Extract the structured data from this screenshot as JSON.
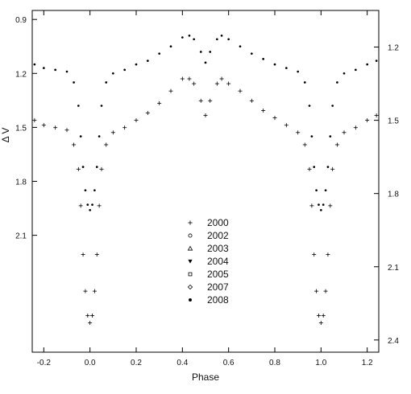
{
  "chart_data": {
    "type": "scatter",
    "xlabel": "Phase",
    "ylabel_left": "Δ V",
    "ylabel_right": "",
    "xlim": [
      -0.25,
      1.25
    ],
    "ylim_left": [
      2.75,
      0.85
    ],
    "ylim_right": [
      2.45,
      1.05
    ],
    "y_inverted": true,
    "grid": false,
    "legend_position": "center",
    "x_ticks": [
      -0.2,
      0.0,
      0.2,
      0.4,
      0.6,
      0.8,
      1.0,
      1.2
    ],
    "x_tick_labels": [
      "-0.2",
      "0.0",
      "0.2",
      "0.4",
      "0.6",
      "0.8",
      "1.0",
      "1.2"
    ],
    "y_ticks_left": [
      0.9,
      1.2,
      1.5,
      1.8,
      2.1
    ],
    "y_tick_labels_left": [
      "0.9",
      "1.2",
      "1.5",
      "1.8",
      "2.1"
    ],
    "y_ticks_right": [
      1.2,
      1.5,
      1.8,
      2.1,
      2.4
    ],
    "y_tick_labels_right": [
      "1.2",
      "1.5",
      "1.8",
      "2.1",
      "2.4"
    ],
    "legend": [
      {
        "label": "2000",
        "marker": "plus"
      },
      {
        "label": "2002",
        "marker": "circle"
      },
      {
        "label": "2003",
        "marker": "triangle-up"
      },
      {
        "label": "2004",
        "marker": "triangle-down"
      },
      {
        "label": "2005",
        "marker": "square"
      },
      {
        "label": "2007",
        "marker": "diamond"
      },
      {
        "label": "2008",
        "marker": "dot"
      }
    ],
    "series": [
      {
        "name": "2000",
        "axis": "right",
        "marker": "plus",
        "x": [
          -0.24,
          -0.2,
          -0.15,
          -0.1,
          -0.07,
          -0.05,
          -0.04,
          -0.03,
          -0.02,
          -0.01,
          0.0,
          0.01,
          0.02,
          0.03,
          0.04,
          0.05,
          0.07,
          0.1,
          0.15,
          0.2,
          0.25,
          0.3,
          0.35,
          0.4,
          0.43,
          0.45,
          0.48,
          0.5,
          0.52,
          0.55,
          0.57,
          0.6,
          0.65,
          0.7,
          0.75,
          0.8,
          0.85,
          0.9,
          0.93,
          0.95,
          0.96,
          0.97,
          0.98,
          0.99,
          1.0,
          1.01,
          1.02,
          1.03,
          1.04,
          1.05,
          1.07,
          1.1,
          1.15,
          1.2,
          1.24
        ],
        "y": [
          1.5,
          1.52,
          1.53,
          1.54,
          1.6,
          1.7,
          1.85,
          2.05,
          2.2,
          2.3,
          2.33,
          2.3,
          2.2,
          2.05,
          1.85,
          1.7,
          1.6,
          1.55,
          1.53,
          1.5,
          1.47,
          1.43,
          1.38,
          1.33,
          1.33,
          1.35,
          1.42,
          1.48,
          1.42,
          1.35,
          1.33,
          1.35,
          1.38,
          1.42,
          1.46,
          1.49,
          1.52,
          1.55,
          1.6,
          1.7,
          1.85,
          2.05,
          2.2,
          2.3,
          2.33,
          2.3,
          2.2,
          2.05,
          1.85,
          1.7,
          1.6,
          1.55,
          1.53,
          1.5,
          1.48
        ]
      },
      {
        "name": "2008",
        "axis": "left",
        "marker": "dot",
        "x": [
          -0.24,
          -0.2,
          -0.15,
          -0.1,
          -0.07,
          -0.05,
          -0.04,
          -0.03,
          -0.02,
          -0.01,
          0.0,
          0.01,
          0.02,
          0.03,
          0.04,
          0.05,
          0.07,
          0.1,
          0.15,
          0.2,
          0.25,
          0.3,
          0.35,
          0.4,
          0.43,
          0.45,
          0.48,
          0.5,
          0.52,
          0.55,
          0.57,
          0.6,
          0.65,
          0.7,
          0.75,
          0.8,
          0.85,
          0.9,
          0.93,
          0.95,
          0.96,
          0.97,
          0.98,
          0.99,
          1.0,
          1.01,
          1.02,
          1.03,
          1.04,
          1.05,
          1.07,
          1.1,
          1.15,
          1.2,
          1.24
        ],
        "y": [
          1.15,
          1.17,
          1.18,
          1.19,
          1.25,
          1.38,
          1.55,
          1.72,
          1.85,
          1.93,
          1.96,
          1.93,
          1.85,
          1.72,
          1.55,
          1.38,
          1.25,
          1.2,
          1.18,
          1.15,
          1.13,
          1.09,
          1.05,
          1.0,
          0.99,
          1.01,
          1.08,
          1.14,
          1.08,
          1.01,
          0.99,
          1.01,
          1.05,
          1.09,
          1.12,
          1.15,
          1.17,
          1.19,
          1.25,
          1.38,
          1.55,
          1.72,
          1.85,
          1.93,
          1.96,
          1.93,
          1.85,
          1.72,
          1.55,
          1.38,
          1.25,
          1.2,
          1.18,
          1.15,
          1.13
        ]
      }
    ]
  }
}
